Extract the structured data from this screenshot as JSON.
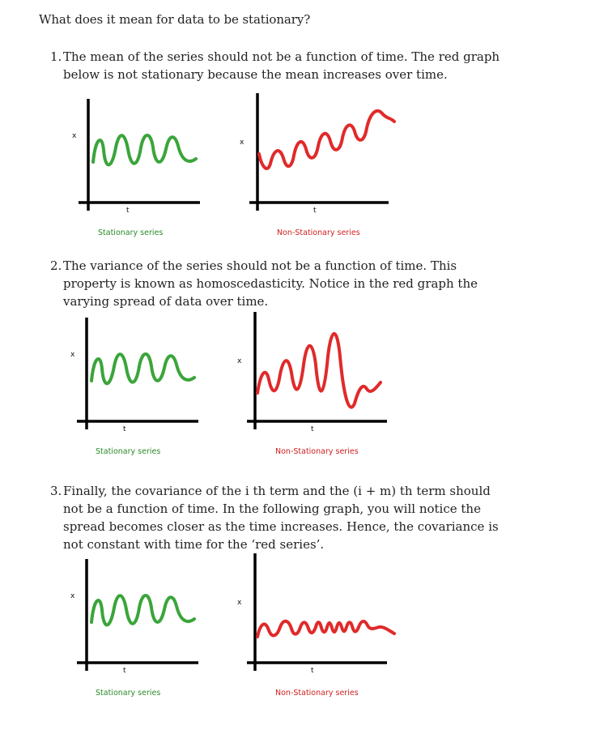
{
  "heading": "What does it mean for data to be stationary?",
  "items": [
    {
      "num": "1.",
      "text": "The mean of the series should not be a function of time. The red graph below is not stationary because the mean increases over time."
    },
    {
      "num": "2.",
      "text": "The variance of the series should not be a function of time. This property is known as homoscedasticity. Notice in the red graph the varying spread of data over time."
    },
    {
      "num": "3.",
      "text": "Finally, the covariance of the i th term and the (i + m) th term should not be a function of time. In the following graph, you will notice the spread becomes closer as the time increases. Hence, the covariance is not constant with time for the ‘red series’."
    }
  ],
  "figures": [
    {
      "left_caption": "Stationary series",
      "right_caption": "Non-Stationary series",
      "y_axis": "x",
      "x_axis": "t"
    },
    {
      "left_caption": "Stationary series",
      "right_caption": "Non-Stationary series",
      "y_axis": "x",
      "x_axis": "t"
    },
    {
      "left_caption": "Stationary series",
      "right_caption": "Non-Stationary series",
      "y_axis": "x",
      "x_axis": "t"
    }
  ],
  "colors": {
    "stationary": "#3aa53a",
    "non_stationary": "#e02a2a",
    "axis": "#000000"
  }
}
